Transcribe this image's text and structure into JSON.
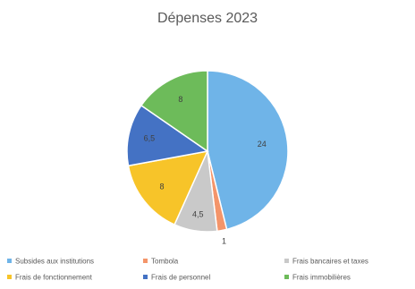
{
  "chart_data": {
    "type": "pie",
    "title": "Dépenses 2023",
    "categories": [
      "Subsides aux institutions",
      "Tombola",
      "Frais bancaires et taxes",
      "Frais de fonctionnement",
      "Frais de personnel",
      "Frais immobilières"
    ],
    "values": [
      24,
      1,
      4.5,
      8,
      6.5,
      8
    ],
    "data_labels": [
      "24",
      "1",
      "4,5",
      "8",
      "6,5",
      "8"
    ],
    "colors": [
      "#6fb4e8",
      "#f4956a",
      "#c9c9c9",
      "#f7c429",
      "#4472c4",
      "#6dbb5a"
    ],
    "legend": "bottom",
    "start_angle_deg": 0,
    "direction": "clockwise"
  }
}
